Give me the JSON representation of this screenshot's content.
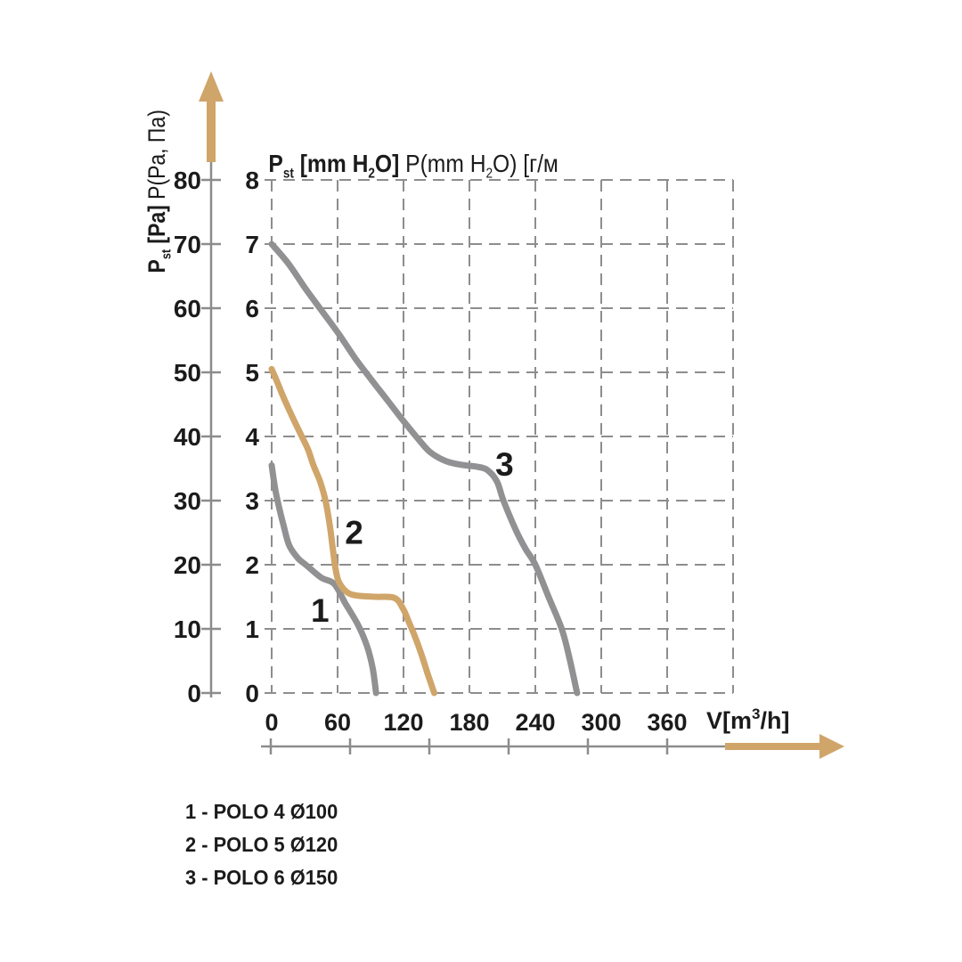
{
  "title": {
    "p": "P",
    "p_sub": "st",
    "bold_unit": " [mm H",
    "bold_sub": "2",
    "bold_close": "O] ",
    "reg": "P(mm H",
    "reg_sub": "2",
    "reg_close": "O) [г/м"
  },
  "y_axis_label": {
    "p": "P",
    "p_sub": "st",
    "bold_unit": " [Pa] ",
    "reg": "P(Pa, Па)"
  },
  "legend": {
    "items": [
      "1 - POLO 4 Ø100",
      "2 - POLO 5 Ø120",
      "3 - POLO 6 Ø150"
    ]
  },
  "colors": {
    "accent_tan": "#D0A56A",
    "curve_gray": "#919193",
    "axis_gray": "#8C8C8C",
    "grid_gray": "#8D8D8D",
    "text": "#1B1B1B"
  },
  "chart_data": {
    "type": "line",
    "title": "P st [mm H2O] P(mm H2O) [г/м",
    "xlabel": "V[m3/h]",
    "ylabel_outer": "P st [Pa] P(Pa, Па)",
    "grid": "dashed",
    "x_axis": {
      "label_parts": {
        "pre": "V[m",
        "sup": "3",
        "post": "/h]"
      },
      "ticks": [
        0,
        60,
        120,
        180,
        240,
        300,
        360
      ],
      "range": [
        0,
        420
      ]
    },
    "y_axis_pa": {
      "ticks": [
        80,
        70,
        60,
        50,
        40,
        30,
        20,
        10,
        0
      ],
      "range": [
        0,
        80
      ]
    },
    "y_axis_mm": {
      "ticks": [
        8,
        7,
        6,
        5,
        4,
        3,
        2,
        1,
        0
      ],
      "range": [
        0,
        8
      ]
    },
    "pressure_note": "inner scale mm H2O, outer scale Pa (1 mm H2O = 10 Pa)",
    "series": [
      {
        "name": "POLO 4 Ø100",
        "curve_label": "1",
        "color": "#919193",
        "label_at": {
          "v": 44,
          "p": 1.29
        },
        "points": [
          [
            0,
            3.55
          ],
          [
            3,
            3.2
          ],
          [
            6,
            2.95
          ],
          [
            11,
            2.6
          ],
          [
            16,
            2.3
          ],
          [
            24,
            2.1
          ],
          [
            31,
            2.0
          ],
          [
            45,
            1.8
          ],
          [
            57,
            1.7
          ],
          [
            67,
            1.4
          ],
          [
            79,
            1.05
          ],
          [
            87,
            0.72
          ],
          [
            92,
            0.38
          ],
          [
            95,
            0
          ]
        ]
      },
      {
        "name": "POLO 5 Ø120",
        "curve_label": "2",
        "color": "#D0A56A",
        "label_at": {
          "v": 75,
          "p": 2.51
        },
        "points": [
          [
            0,
            5.05
          ],
          [
            5,
            4.85
          ],
          [
            11,
            4.6
          ],
          [
            19,
            4.3
          ],
          [
            26,
            4.05
          ],
          [
            33,
            3.8
          ],
          [
            38,
            3.55
          ],
          [
            44,
            3.3
          ],
          [
            49,
            3.0
          ],
          [
            53,
            2.6
          ],
          [
            56,
            2.2
          ],
          [
            58,
            1.95
          ],
          [
            61,
            1.74
          ],
          [
            68,
            1.58
          ],
          [
            77,
            1.52
          ],
          [
            95,
            1.5
          ],
          [
            112,
            1.48
          ],
          [
            120,
            1.3
          ],
          [
            125,
            1.1
          ],
          [
            130,
            0.9
          ],
          [
            136,
            0.62
          ],
          [
            142,
            0.3
          ],
          [
            148,
            0
          ]
        ]
      },
      {
        "name": "POLO 6 Ø150",
        "curve_label": "3",
        "color": "#919193",
        "label_at": {
          "v": 212,
          "p": 3.57
        },
        "points": [
          [
            0,
            7.0
          ],
          [
            15,
            6.7
          ],
          [
            31,
            6.3
          ],
          [
            46,
            5.95
          ],
          [
            61,
            5.6
          ],
          [
            76,
            5.22
          ],
          [
            91,
            4.88
          ],
          [
            106,
            4.55
          ],
          [
            120,
            4.24
          ],
          [
            133,
            3.97
          ],
          [
            144,
            3.76
          ],
          [
            158,
            3.62
          ],
          [
            172,
            3.56
          ],
          [
            186,
            3.53
          ],
          [
            196,
            3.48
          ],
          [
            205,
            3.3
          ],
          [
            211,
            3.0
          ],
          [
            222,
            2.55
          ],
          [
            231,
            2.25
          ],
          [
            240,
            2.0
          ],
          [
            252,
            1.5
          ],
          [
            264,
            1.0
          ],
          [
            271,
            0.55
          ],
          [
            278,
            0
          ]
        ]
      }
    ]
  }
}
